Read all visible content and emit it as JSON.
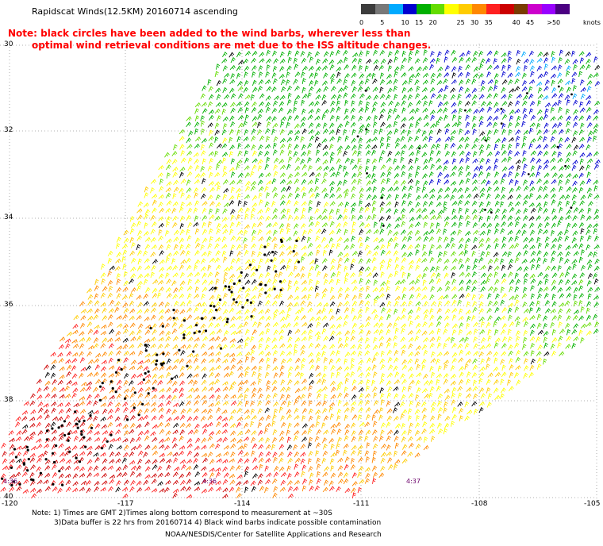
{
  "title": "Rapidscat Winds(12.5KM) 20160714 ascending",
  "note": {
    "line1": "Note: black circles have been added to the wind barbs, wherever less than",
    "line2": "optimal wind retrieval conditions are met due to the ISS altitude changes."
  },
  "colorbar": {
    "unit": "knots",
    "colors": [
      "#3c3c3c",
      "#787878",
      "#00aaff",
      "#0000d0",
      "#00b000",
      "#64dc00",
      "#ffff00",
      "#ffcc00",
      "#ff8800",
      "#ff2020",
      "#cc0000",
      "#7a3c00",
      "#cc00cc",
      "#9900ff",
      "#4b0082"
    ],
    "labels": [
      {
        "text": "0",
        "col": 0
      },
      {
        "text": "5",
        "col": 1.5
      },
      {
        "text": "10",
        "col": 3
      },
      {
        "text": "15",
        "col": 4
      },
      {
        "text": "20",
        "col": 5
      },
      {
        "text": "25",
        "col": 7
      },
      {
        "text": "30",
        "col": 8
      },
      {
        "text": "35",
        "col": 9
      },
      {
        "text": "40",
        "col": 11
      },
      {
        "text": "45",
        "col": 12
      },
      {
        "text": ">50",
        "col": 13.5
      }
    ]
  },
  "latitude_labels": [
    "30",
    "32",
    "34",
    "36",
    "38",
    "40"
  ],
  "longitude_labels": [
    "-120",
    "-117",
    "-114",
    "-111",
    "-108",
    "-105"
  ],
  "pass_times": [
    "4:36",
    "4:36",
    "4:37"
  ],
  "footer": {
    "line1": "Note: 1) Times are GMT 2)Times along bottom correspond to measurement at ~30S",
    "line2": "3)Data buffer is 22 hrs from 20160714 4) Black wind barbs indicate possible contamination",
    "line3": "NOAA/NESDIS/Center for Satellite Applications and Research"
  }
}
